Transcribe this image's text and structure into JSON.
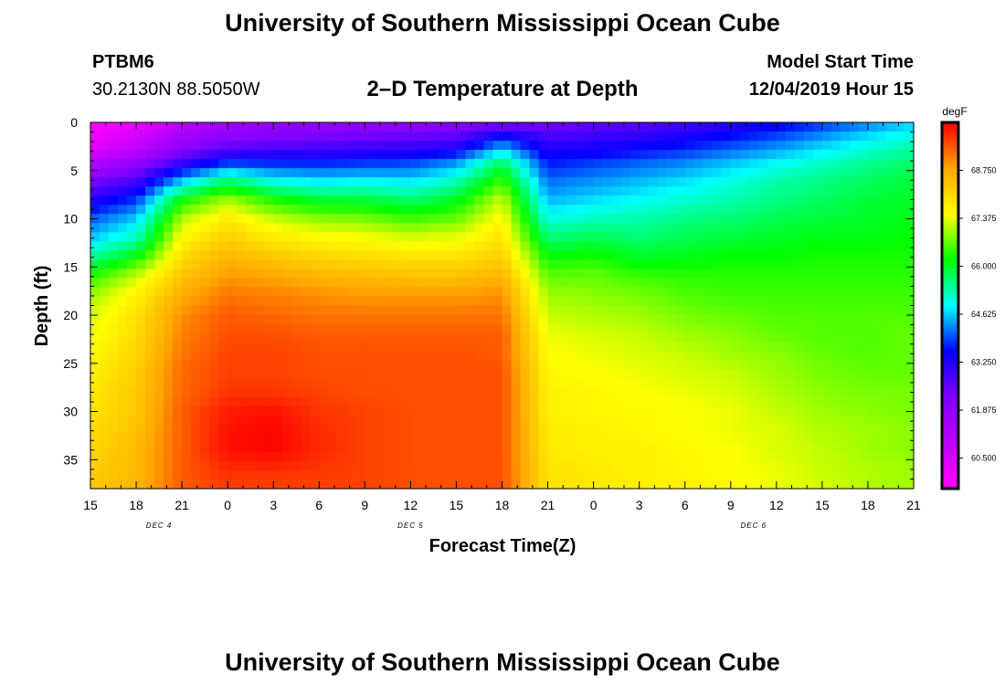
{
  "page": {
    "title_top": "University of Southern Mississippi Ocean Cube",
    "title_bottom": "University of Southern Mississippi Ocean Cube",
    "station_id": "PTBM6",
    "station_coords": "30.2130N 88.5050W",
    "plot_title": "2–D Temperature at Depth",
    "model_start_label": "Model Start Time",
    "model_start_value": "12/04/2019 Hour 15"
  },
  "colors": {
    "background": "#ffffff",
    "frame": "#000000",
    "colormap": [
      "#ff00ff",
      "#c000ff",
      "#8000ff",
      "#0000ff",
      "#00ffff",
      "#00ff00",
      "#ffff00",
      "#ffa500",
      "#ff0000"
    ]
  },
  "chart_data": {
    "type": "heatmap",
    "title": "2–D Temperature at Depth",
    "xlabel": "Forecast Time(Z)",
    "ylabel": "Depth (ft)",
    "units": "degF",
    "x_hours": [
      0,
      3,
      6,
      9,
      12,
      15,
      18,
      21,
      24,
      27,
      30,
      33,
      36,
      39,
      42,
      45,
      48,
      51,
      54
    ],
    "x_tick_labels": [
      "15",
      "18",
      "21",
      "0",
      "3",
      "6",
      "9",
      "12",
      "15",
      "18",
      "21",
      "0",
      "3",
      "6",
      "9",
      "12",
      "15",
      "18",
      "21"
    ],
    "date_labels": [
      {
        "text": "DEC 4",
        "at_hour": 4.5
      },
      {
        "text": "DEC 5",
        "at_hour": 21
      },
      {
        "text": "DEC 6",
        "at_hour": 43.5
      }
    ],
    "xlim": [
      0,
      54
    ],
    "y_ticks": [
      0,
      5,
      10,
      15,
      20,
      25,
      30,
      35
    ],
    "ylim": [
      0,
      38
    ],
    "colorbar": {
      "range": [
        59.625,
        70.125
      ],
      "ticks": [
        60.5,
        61.875,
        63.25,
        64.625,
        66.0,
        67.375,
        68.75
      ],
      "tick_labels": [
        "60.500",
        "61.875",
        "63.250",
        "64.625",
        "66.000",
        "67.375",
        "68.750"
      ]
    },
    "grid_time_hours": [
      0,
      3,
      6,
      9,
      12,
      15,
      18,
      21,
      24,
      27,
      30,
      33,
      36,
      39,
      42,
      45,
      48,
      51,
      54
    ],
    "grid_depths_ft": [
      0,
      2,
      4,
      6,
      8,
      10,
      12,
      14,
      16,
      18,
      20,
      22,
      24,
      26,
      28,
      30,
      32,
      34,
      36,
      38
    ],
    "values_degF": [
      [
        59.6,
        60.1,
        61.0,
        61.5,
        61.7,
        61.8,
        61.8,
        61.9,
        62.0,
        62.1,
        62.3,
        62.5,
        62.6,
        62.8,
        63.1,
        63.4,
        63.8,
        64.2,
        64.6
      ],
      [
        60.0,
        60.6,
        61.7,
        62.2,
        62.4,
        62.5,
        62.6,
        62.7,
        62.8,
        64.0,
        63.0,
        63.1,
        63.3,
        63.5,
        63.8,
        64.1,
        64.5,
        64.9,
        65.2
      ],
      [
        61.0,
        61.7,
        62.8,
        63.6,
        63.6,
        63.6,
        63.7,
        63.8,
        64.2,
        65.6,
        63.6,
        63.8,
        64.0,
        64.2,
        64.5,
        64.8,
        65.1,
        65.4,
        65.6
      ],
      [
        62.2,
        62.8,
        64.5,
        65.6,
        64.9,
        64.7,
        64.8,
        64.7,
        65.2,
        66.5,
        64.1,
        64.3,
        64.5,
        64.7,
        65.0,
        65.3,
        65.5,
        65.7,
        65.9
      ],
      [
        63.2,
        63.8,
        66.2,
        67.0,
        66.3,
        65.9,
        65.9,
        65.6,
        66.0,
        67.2,
        64.5,
        64.7,
        64.9,
        65.1,
        65.3,
        65.5,
        65.7,
        65.9,
        66.0
      ],
      [
        64.0,
        64.6,
        67.1,
        67.8,
        67.2,
        66.9,
        66.8,
        66.5,
        66.7,
        67.6,
        65.0,
        65.2,
        65.3,
        65.5,
        65.6,
        65.8,
        65.9,
        66.0,
        66.1
      ],
      [
        64.6,
        65.2,
        67.6,
        68.2,
        67.8,
        67.6,
        67.5,
        67.3,
        67.4,
        67.9,
        65.6,
        65.8,
        65.6,
        65.8,
        65.9,
        66.0,
        66.1,
        66.1,
        66.2
      ],
      [
        65.4,
        66.2,
        68.0,
        68.6,
        68.3,
        68.1,
        68.0,
        67.9,
        67.9,
        68.2,
        66.2,
        66.3,
        66.0,
        66.1,
        66.2,
        66.2,
        66.3,
        66.3,
        66.3
      ],
      [
        66.4,
        67.2,
        68.4,
        68.9,
        68.8,
        68.6,
        68.5,
        68.4,
        68.4,
        68.6,
        66.7,
        66.7,
        66.5,
        66.4,
        66.4,
        66.4,
        66.4,
        66.4,
        66.4
      ],
      [
        67.0,
        67.7,
        68.7,
        69.2,
        69.1,
        69.0,
        68.9,
        68.9,
        68.9,
        69.0,
        67.0,
        66.9,
        66.8,
        66.6,
        66.5,
        66.5,
        66.5,
        66.5,
        66.5
      ],
      [
        67.3,
        67.9,
        69.0,
        69.4,
        69.3,
        69.2,
        69.2,
        69.2,
        69.2,
        69.2,
        67.2,
        67.1,
        67.0,
        66.8,
        66.7,
        66.6,
        66.6,
        66.6,
        66.6
      ],
      [
        67.4,
        68.0,
        69.1,
        69.5,
        69.5,
        69.4,
        69.4,
        69.4,
        69.4,
        69.4,
        67.4,
        67.3,
        67.2,
        67.0,
        66.9,
        66.7,
        66.6,
        66.6,
        66.7
      ],
      [
        67.6,
        68.1,
        69.2,
        69.6,
        69.6,
        69.5,
        69.5,
        69.5,
        69.5,
        69.4,
        67.5,
        67.4,
        67.3,
        67.2,
        67.0,
        66.9,
        66.7,
        66.6,
        66.7
      ],
      [
        67.7,
        68.2,
        69.3,
        69.6,
        69.6,
        69.5,
        69.5,
        69.5,
        69.5,
        69.5,
        67.6,
        67.5,
        67.4,
        67.3,
        67.2,
        67.0,
        66.8,
        66.7,
        66.7
      ],
      [
        67.8,
        68.3,
        69.3,
        69.7,
        69.7,
        69.6,
        69.5,
        69.5,
        69.5,
        69.5,
        67.7,
        67.6,
        67.5,
        67.4,
        67.3,
        67.1,
        66.9,
        66.8,
        66.8
      ],
      [
        67.9,
        68.3,
        69.4,
        69.9,
        70.0,
        69.7,
        69.6,
        69.5,
        69.5,
        69.5,
        67.7,
        67.6,
        67.6,
        67.5,
        67.4,
        67.2,
        67.0,
        66.9,
        66.8
      ],
      [
        68.0,
        68.4,
        69.4,
        70.0,
        70.1,
        69.8,
        69.6,
        69.5,
        69.5,
        69.5,
        67.8,
        67.7,
        67.6,
        67.5,
        67.4,
        67.3,
        67.1,
        67.0,
        66.9
      ],
      [
        68.1,
        68.5,
        69.4,
        70.0,
        70.1,
        69.8,
        69.6,
        69.5,
        69.5,
        69.5,
        67.8,
        67.7,
        67.7,
        67.6,
        67.5,
        67.3,
        67.2,
        67.0,
        66.9
      ],
      [
        68.2,
        68.5,
        69.4,
        69.8,
        69.8,
        69.7,
        69.6,
        69.5,
        69.5,
        69.5,
        67.9,
        67.8,
        67.7,
        67.6,
        67.5,
        67.4,
        67.2,
        67.1,
        67.0
      ],
      [
        68.3,
        68.6,
        69.4,
        69.6,
        69.6,
        69.6,
        69.6,
        69.5,
        69.5,
        69.5,
        67.9,
        67.8,
        67.7,
        67.7,
        67.6,
        67.4,
        67.3,
        67.1,
        67.0
      ]
    ]
  }
}
